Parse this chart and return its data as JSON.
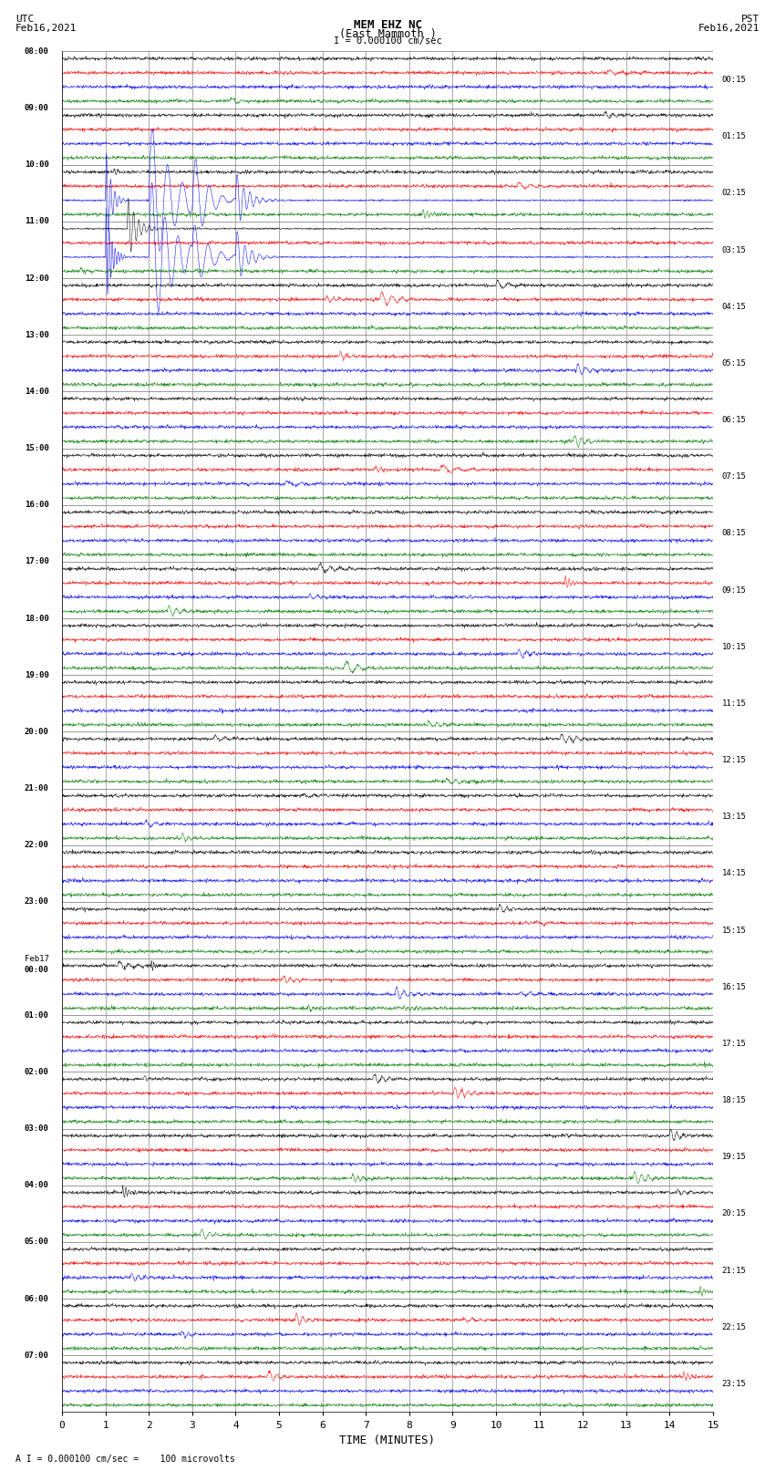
{
  "title_line1": "MEM EHZ NC",
  "title_line2": "(East Mammoth )",
  "scale_label": "I = 0.000100 cm/sec",
  "bottom_label": "A I = 0.000100 cm/sec =    100 microvolts",
  "xlabel": "TIME (MINUTES)",
  "utc_label": "UTC\nFeb16,2021",
  "pst_label": "PST\nFeb16,2021",
  "left_times": [
    "08:00",
    "09:00",
    "10:00",
    "11:00",
    "12:00",
    "13:00",
    "14:00",
    "15:00",
    "16:00",
    "17:00",
    "18:00",
    "19:00",
    "20:00",
    "21:00",
    "22:00",
    "23:00",
    "Feb17\n00:00",
    "01:00",
    "02:00",
    "03:00",
    "04:00",
    "05:00",
    "06:00",
    "07:00"
  ],
  "right_times": [
    "00:15",
    "01:15",
    "02:15",
    "03:15",
    "04:15",
    "05:15",
    "06:15",
    "07:15",
    "08:15",
    "09:15",
    "10:15",
    "11:15",
    "12:15",
    "13:15",
    "14:15",
    "15:15",
    "16:15",
    "17:15",
    "18:15",
    "19:15",
    "20:15",
    "21:15",
    "22:15",
    "23:15"
  ],
  "n_rows": 24,
  "n_traces_per_row": 4,
  "colors": [
    "black",
    "red",
    "blue",
    "#008000"
  ],
  "bg_color": "white",
  "grid_color": "#888888",
  "baseline_color": "#cccccc",
  "x_ticks": [
    0,
    1,
    2,
    3,
    4,
    5,
    6,
    7,
    8,
    9,
    10,
    11,
    12,
    13,
    14,
    15
  ],
  "noise_amplitude": 0.06,
  "seed": 42
}
